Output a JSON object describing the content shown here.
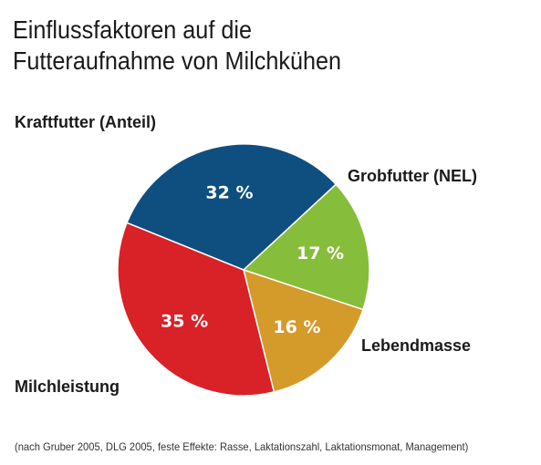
{
  "title_lines": [
    "Einflussfaktoren auf die",
    "Futteraufnahme von Milchkühen"
  ],
  "source": "(nach Gruber 2005, DLG 2005, feste Effekte: Rasse, Laktationszahl, Laktationsmonat, Management)",
  "chart_data": {
    "type": "pie",
    "title": "Einflussfaktoren auf die Futteraufnahme von Milchkühen",
    "slices": [
      {
        "name": "Kraftfutter (Anteil)",
        "value": 32,
        "label": "32 %",
        "color": "#0f4f7f"
      },
      {
        "name": "Grobfutter (NEL)",
        "value": 17,
        "label": "17 %",
        "color": "#86bd3b"
      },
      {
        "name": "Lebendmasse",
        "value": 16,
        "label": "16 %",
        "color": "#d49a2a"
      },
      {
        "name": "Milchleistung",
        "value": 35,
        "label": "35 %",
        "color": "#d92128"
      }
    ],
    "start_angle_deg": -158,
    "direction": "clockwise"
  }
}
